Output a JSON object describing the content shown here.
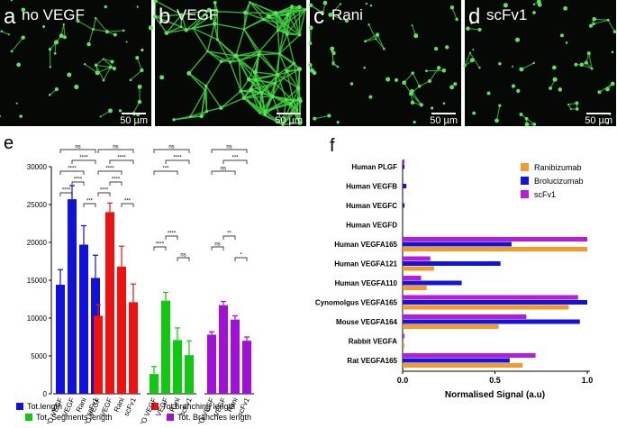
{
  "panels": [
    {
      "letter": "a",
      "label": "no VEGF"
    },
    {
      "letter": "b",
      "label": "VEGF"
    },
    {
      "letter": "c",
      "label": "Rani"
    },
    {
      "letter": "d",
      "label": "scFv1"
    }
  ],
  "scale_bar": "50 µm",
  "chart_data": [
    {
      "type": "grouped-bar",
      "panel": "e",
      "categories": [
        "NO VEGF",
        "VEGF",
        "Rani",
        "scFv1"
      ],
      "ylim": [
        0,
        30000
      ],
      "yticks": [
        0,
        5000,
        10000,
        15000,
        20000,
        25000,
        30000
      ],
      "series": [
        {
          "name": "Tot.length",
          "color": "#1010e0",
          "values": [
            14400,
            25700,
            19700,
            15300
          ],
          "errors": [
            2000,
            1800,
            2500,
            3000
          ],
          "significance": [
            "ns",
            "****",
            "****",
            "****",
            "****",
            "***"
          ]
        },
        {
          "name": "Tot.branching length",
          "color": "#f01010",
          "values": [
            10300,
            24000,
            16800,
            12100
          ],
          "errors": [
            1500,
            1200,
            2700,
            2400
          ],
          "significance": [
            "ns",
            "****",
            "****",
            "****",
            "****",
            "***"
          ]
        },
        {
          "name": "Tot. Segments length",
          "color": "#10c810",
          "values": [
            2600,
            12300,
            7100,
            5100
          ],
          "errors": [
            1000,
            1100,
            1600,
            1900
          ],
          "significance": [
            "ns",
            "****",
            "***",
            "****",
            "****",
            "ns"
          ]
        },
        {
          "name": "Tot. Branches length",
          "color": "#a010d8",
          "values": [
            7800,
            11700,
            9800,
            7000
          ],
          "errors": [
            400,
            500,
            500,
            500
          ],
          "significance": [
            "ns",
            "***",
            "ns",
            "**",
            "ns",
            "*"
          ]
        }
      ]
    },
    {
      "type": "hbar",
      "panel": "f",
      "xlabel": "Normalised Signal (a.u)",
      "categories": [
        "Human PLGF",
        "Human VEGFB",
        "Human VEGFC",
        "Human VEGFD",
        "Human VEGFA165",
        "Human VEGFA121",
        "Human VEGFA110",
        "Cynomolgus VEGFA165",
        "Mouse VEGFA164",
        "Rabbit VEGFA",
        "Rat VEGFA165"
      ],
      "xlim": [
        0,
        1.0
      ],
      "xticks": [
        {
          "value": 0,
          "label": "0.0"
        },
        0.5,
        {
          "value": 1,
          "label": "1.0"
        }
      ],
      "series": [
        {
          "name": "Ranibizumab",
          "color": "#f29a2e",
          "values": [
            0,
            0,
            0,
            0,
            1.0,
            0.17,
            0.13,
            0.9,
            0.52,
            0.01,
            0.65
          ]
        },
        {
          "name": "Brolucizumab",
          "color": "#1414d8",
          "values": [
            0.01,
            0.02,
            0.01,
            0,
            0.59,
            0.53,
            0.32,
            1.0,
            0.96,
            0,
            0.58
          ]
        },
        {
          "name": "scFv1",
          "color": "#b41ed8",
          "values": [
            0.01,
            0,
            0,
            0,
            1.0,
            0.15,
            0.1,
            0.95,
            0.67,
            0.01,
            0.72
          ]
        }
      ]
    }
  ]
}
